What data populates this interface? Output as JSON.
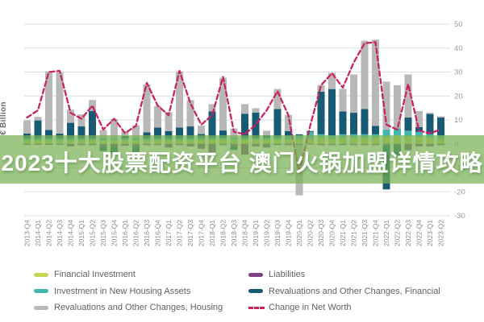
{
  "banner": {
    "text": "2023十大股票配资平台 澳门火锅加盟详情攻略",
    "overlay_rgba": "rgba(119,177,83,0.72)",
    "text_color": "#ffffff"
  },
  "chart_data": {
    "type": "bar",
    "stacked": true,
    "title": "",
    "xlabel": "",
    "ylabel": "€ Billion",
    "ylim": [
      -30,
      50
    ],
    "yticks": [
      50,
      40,
      30,
      20,
      10,
      0,
      -10,
      -20,
      -30
    ],
    "grid": true,
    "legend_position": "bottom",
    "categories": [
      "2013-Q4",
      "2014-Q1",
      "2014-Q2",
      "2014-Q3",
      "2014-Q4",
      "2015-Q1",
      "2015-Q2",
      "2015-Q3",
      "2015-Q4",
      "2016-Q1",
      "2016-Q2",
      "2016-Q3",
      "2016-Q4",
      "2017-Q1",
      "2017-Q2",
      "2017-Q3",
      "2017-Q4",
      "2018-Q1",
      "2018-Q2",
      "2018-Q3",
      "2018-Q4",
      "2019-Q1",
      "2019-Q2",
      "2019-Q3",
      "2019-Q4",
      "2020-Q1",
      "2020-Q2",
      "2020-Q3",
      "2020-Q4",
      "2021-Q1",
      "2021-Q2",
      "2021-Q3",
      "2021-Q4",
      "2022-Q1",
      "2022-Q2",
      "2022-Q3",
      "2022-Q4",
      "2023-Q1",
      "2023-Q2"
    ],
    "series": [
      {
        "name": "Financial Investment",
        "color": "#c6d553",
        "values": [
          1.5,
          1.5,
          1.5,
          1.5,
          1.5,
          1.5,
          1.5,
          1.5,
          1.5,
          1.5,
          1.5,
          1.5,
          1.5,
          1.5,
          1.5,
          1.5,
          1.8,
          1.8,
          1.8,
          1.8,
          1.8,
          1.8,
          1.8,
          1.8,
          1.8,
          2.0,
          2.0,
          2.5,
          2.0,
          2.5,
          2.5,
          2.5,
          2.5,
          3.0,
          3.5,
          3.0,
          3.0,
          2.5,
          2.0
        ]
      },
      {
        "name": "Investment in New Housing Assets",
        "color": "#43b6af",
        "values": [
          0.8,
          0.8,
          0.8,
          0.8,
          0.8,
          0.8,
          0.8,
          0.8,
          0.8,
          0.8,
          0.8,
          0.8,
          0.8,
          0.8,
          0.8,
          0.8,
          0.8,
          0.8,
          0.8,
          0.8,
          0.8,
          0.8,
          0.8,
          0.8,
          1.5,
          1.5,
          3.0,
          1.5,
          1.5,
          1.5,
          1.5,
          1.5,
          1.5,
          3.0,
          3.0,
          2.5,
          2.0,
          1.5,
          1.5
        ]
      },
      {
        "name": "Liabilities",
        "color": "#7b4181",
        "values": [
          -0.4,
          -0.4,
          -0.4,
          -0.4,
          -1.0,
          -0.5,
          -0.5,
          -1.0,
          -0.8,
          -0.8,
          -0.8,
          -0.5,
          -0.5,
          -1.5,
          -0.5,
          -1.0,
          -2.0,
          -3.5,
          -0.5,
          -1.0,
          -4.5,
          -1.0,
          -1.5,
          -0.5,
          -0.5,
          -0.5,
          -0.3,
          -0.5,
          -0.5,
          -0.5,
          -0.5,
          -0.5,
          -0.5,
          -0.5,
          -0.5,
          -2.6,
          -1.0,
          -1.0,
          -0.5
        ]
      },
      {
        "name": "Revaluations and Other Changes, Financial",
        "color": "#175a74",
        "values": [
          2.0,
          7.5,
          3.5,
          2.0,
          6.5,
          5.0,
          11.5,
          -2.0,
          -3.0,
          1.0,
          -3.5,
          2.5,
          4.5,
          3.0,
          4.5,
          5.0,
          1.5,
          11.0,
          3.0,
          -1.5,
          10.0,
          10.5,
          1.0,
          12.0,
          2.0,
          0.5,
          0.3,
          17.8,
          19.4,
          9.6,
          9.0,
          10.6,
          3.5,
          -18.5,
          -4.8,
          5.5,
          2.0,
          8.5,
          7.5
        ]
      },
      {
        "name": "Revaluations and Other Changes, Housing",
        "color": "#b8b8b8",
        "values": [
          5.5,
          1.5,
          24.5,
          25.5,
          5.5,
          5.0,
          4.5,
          3.5,
          8.0,
          2.0,
          5.5,
          20.0,
          9.0,
          8.0,
          23.5,
          11.0,
          3.5,
          3.0,
          22.0,
          3.8,
          4.0,
          1.8,
          1.9,
          8.3,
          6.8,
          -21.0,
          0.2,
          2.8,
          6.8,
          9.4,
          16.0,
          28.5,
          36.0,
          20.0,
          18.0,
          18.0,
          6.7,
          0.5,
          0.5
        ]
      }
    ],
    "line_series": {
      "name": "Change in Net Worth",
      "color": "#c72461",
      "style": "dashed",
      "values": [
        11,
        14,
        30,
        30.5,
        13,
        10.5,
        16,
        6,
        10.5,
        4.5,
        7.5,
        25.5,
        16,
        12,
        30.5,
        17,
        8,
        12,
        28,
        5,
        4,
        8,
        14,
        22,
        12,
        -12,
        7.5,
        24.5,
        29.5,
        23.5,
        34,
        42,
        42.5,
        8,
        6,
        25,
        5.5,
        4.5,
        6
      ]
    },
    "colors": {
      "grid": "#dedede",
      "y_tick_text": "#9a9a9a",
      "x_tick_text": "#8c8c8c",
      "legend_text": "#5c6267"
    }
  }
}
